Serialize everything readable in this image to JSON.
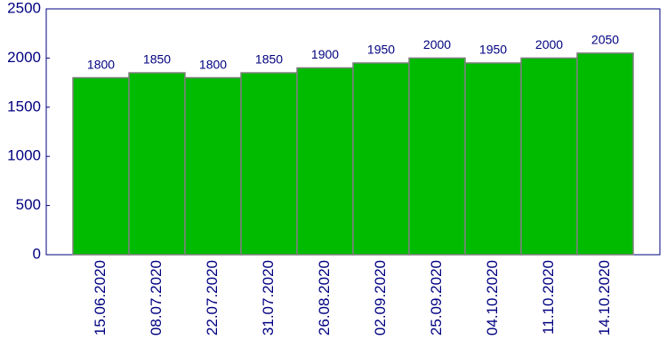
{
  "chart_data": {
    "type": "bar",
    "categories": [
      "15.06.2020",
      "08.07.2020",
      "22.07.2020",
      "31.07.2020",
      "26.08.2020",
      "02.09.2020",
      "25.09.2020",
      "04.10.2020",
      "11.10.2020",
      "14.10.2020"
    ],
    "values": [
      1800,
      1850,
      1800,
      1850,
      1900,
      1950,
      2000,
      1950,
      2000,
      2050
    ],
    "color": "#00bb00",
    "ylim": [
      0,
      2500
    ],
    "yticks": [
      0,
      500,
      1000,
      1500,
      2000,
      2500
    ],
    "grid": false
  }
}
